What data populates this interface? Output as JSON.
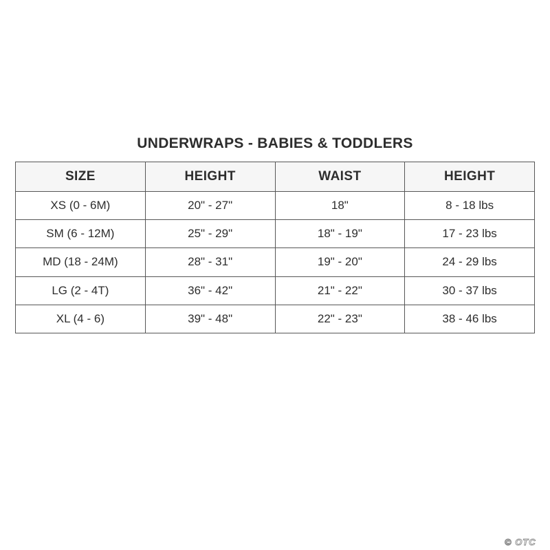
{
  "title": "UNDERWRAPS - BABIES & TODDLERS",
  "watermark": "© OTC",
  "colors": {
    "background": "#ffffff",
    "text": "#2d2d2d",
    "border": "#555555",
    "header_bg": "#f6f6f6",
    "watermark": "#8a8a8a"
  },
  "chart_data": {
    "type": "table",
    "title": "UNDERWRAPS - BABIES & TODDLERS",
    "headers": [
      "SIZE",
      "HEIGHT",
      "WAIST",
      "HEIGHT"
    ],
    "rows": [
      [
        "XS (0 - 6M)",
        "20\" - 27\"",
        "18\"",
        "8 - 18 lbs"
      ],
      [
        "SM (6 - 12M)",
        "25\" - 29\"",
        "18\" - 19\"",
        "17 - 23 lbs"
      ],
      [
        "MD (18 - 24M)",
        "28\" - 31\"",
        "19\" - 20\"",
        "24 - 29 lbs"
      ],
      [
        "LG (2 - 4T)",
        "36\" - 42\"",
        "21\" - 22\"",
        "30 - 37 lbs"
      ],
      [
        "XL (4 - 6)",
        "39\" - 48\"",
        "22\" - 23\"",
        "38 - 46 lbs"
      ]
    ],
    "legend": null,
    "grid": true
  }
}
